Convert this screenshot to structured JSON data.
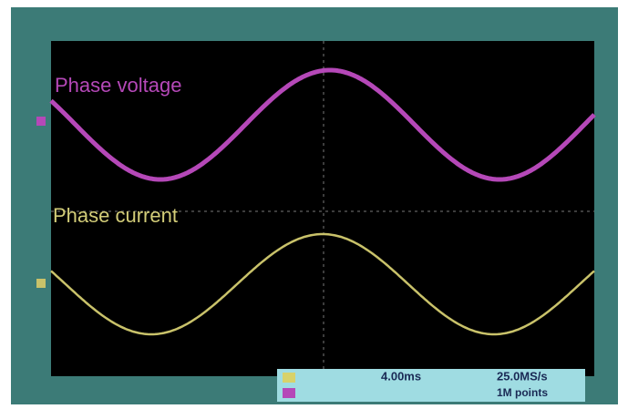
{
  "screen": {
    "traces": [
      {
        "label": "Phase voltage"
      },
      {
        "label": "Phase current"
      }
    ],
    "status": {
      "timebase": "4.00ms",
      "sample_rate": "25.0MS/s",
      "record_length": "1M points"
    }
  }
}
